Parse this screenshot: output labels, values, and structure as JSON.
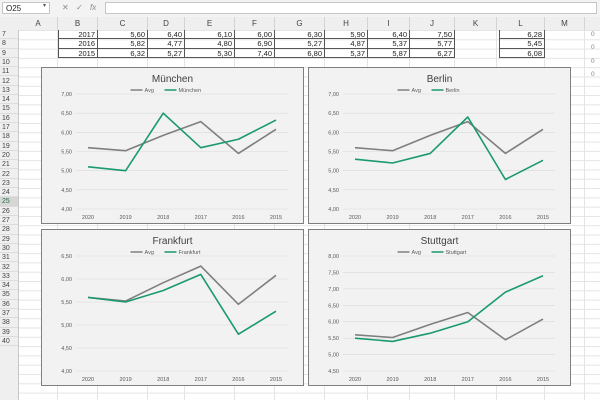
{
  "formula_bar": {
    "name_box": "O25",
    "cancel_icon": "cancel-icon",
    "enter_icon": "check-icon",
    "function_label": "fx",
    "formula": ""
  },
  "column_headers": [
    "A",
    "B",
    "C",
    "D",
    "E",
    "F",
    "G",
    "H",
    "I",
    "J",
    "K",
    "L",
    "M"
  ],
  "row_headers": [
    "7",
    "8",
    "9",
    "10",
    "11",
    "12",
    "13",
    "14",
    "15",
    "16",
    "17",
    "18",
    "19",
    "20",
    "21",
    "22",
    "23",
    "24",
    "25",
    "26",
    "27",
    "28",
    "29",
    "30",
    "31",
    "32",
    "33",
    "34",
    "35",
    "36",
    "37",
    "38",
    "39",
    "40"
  ],
  "selected_row": "25",
  "table_rows": [
    {
      "year": "2017",
      "values": [
        "5,60",
        "6,40",
        "6,10",
        "6,00",
        "6,30",
        "5,90",
        "6,40",
        "7,50"
      ],
      "avg": "6,28"
    },
    {
      "year": "2016",
      "values": [
        "5,82",
        "4,77",
        "4,80",
        "6,90",
        "5,27",
        "4,87",
        "5,37",
        "5,77"
      ],
      "avg": "5,45"
    },
    {
      "year": "2015",
      "values": [
        "6,32",
        "5,27",
        "5,30",
        "7,40",
        "6,80",
        "5,37",
        "5,87",
        "6,27"
      ],
      "avg": "6,08"
    }
  ],
  "edge_values": [
    "0",
    "0",
    "0",
    "0"
  ],
  "colors": {
    "avg_line": "#7f7f7f",
    "city_line": "#1a9a6c",
    "chart_bg": "#f2f2f2",
    "header_bg": "#efefef",
    "accent": "#217346"
  },
  "chart_data": [
    {
      "type": "line",
      "title": "München",
      "categories": [
        "2020",
        "2019",
        "2018",
        "2017",
        "2016",
        "2015"
      ],
      "series": [
        {
          "name": "Avg",
          "values": [
            5.6,
            5.52,
            5.92,
            6.28,
            5.45,
            6.08
          ]
        },
        {
          "name": "München",
          "values": [
            5.1,
            5.0,
            6.5,
            5.6,
            5.82,
            6.32
          ]
        }
      ],
      "ylim": [
        4.0,
        7.0
      ],
      "yticks": [
        "4,00",
        "4,50",
        "5,00",
        "5,50",
        "6,00",
        "6,50",
        "7,00"
      ],
      "legend": "top"
    },
    {
      "type": "line",
      "title": "Berlin",
      "categories": [
        "2020",
        "2019",
        "2018",
        "2017",
        "2016",
        "2015"
      ],
      "series": [
        {
          "name": "Avg",
          "values": [
            5.6,
            5.52,
            5.92,
            6.28,
            5.45,
            6.08
          ]
        },
        {
          "name": "Berlin",
          "values": [
            5.3,
            5.2,
            5.45,
            6.4,
            4.77,
            5.27
          ]
        }
      ],
      "ylim": [
        4.0,
        7.0
      ],
      "yticks": [
        "4,00",
        "4,50",
        "5,00",
        "5,50",
        "6,00",
        "6,50",
        "7,00"
      ],
      "legend": "top"
    },
    {
      "type": "line",
      "title": "Frankfurt",
      "categories": [
        "2020",
        "2019",
        "2018",
        "2017",
        "2016",
        "2015"
      ],
      "series": [
        {
          "name": "Avg",
          "values": [
            5.6,
            5.52,
            5.92,
            6.28,
            5.45,
            6.08
          ]
        },
        {
          "name": "Frankfurt",
          "values": [
            5.6,
            5.5,
            5.75,
            6.1,
            4.8,
            5.3
          ]
        }
      ],
      "ylim": [
        4.0,
        6.5
      ],
      "yticks": [
        "4,00",
        "4,50",
        "5,00",
        "5,50",
        "6,00",
        "6,50"
      ],
      "legend": "top"
    },
    {
      "type": "line",
      "title": "Stuttgart",
      "categories": [
        "2020",
        "2019",
        "2018",
        "2017",
        "2016",
        "2015"
      ],
      "series": [
        {
          "name": "Avg",
          "values": [
            5.6,
            5.52,
            5.92,
            6.28,
            5.45,
            6.08
          ]
        },
        {
          "name": "Stuttgart",
          "values": [
            5.5,
            5.4,
            5.65,
            6.0,
            6.9,
            7.4
          ]
        }
      ],
      "ylim": [
        4.5,
        8.0
      ],
      "yticks": [
        "4,50",
        "5,00",
        "5,50",
        "6,00",
        "6,50",
        "7,00",
        "7,50",
        "8,00"
      ],
      "legend": "top"
    }
  ]
}
